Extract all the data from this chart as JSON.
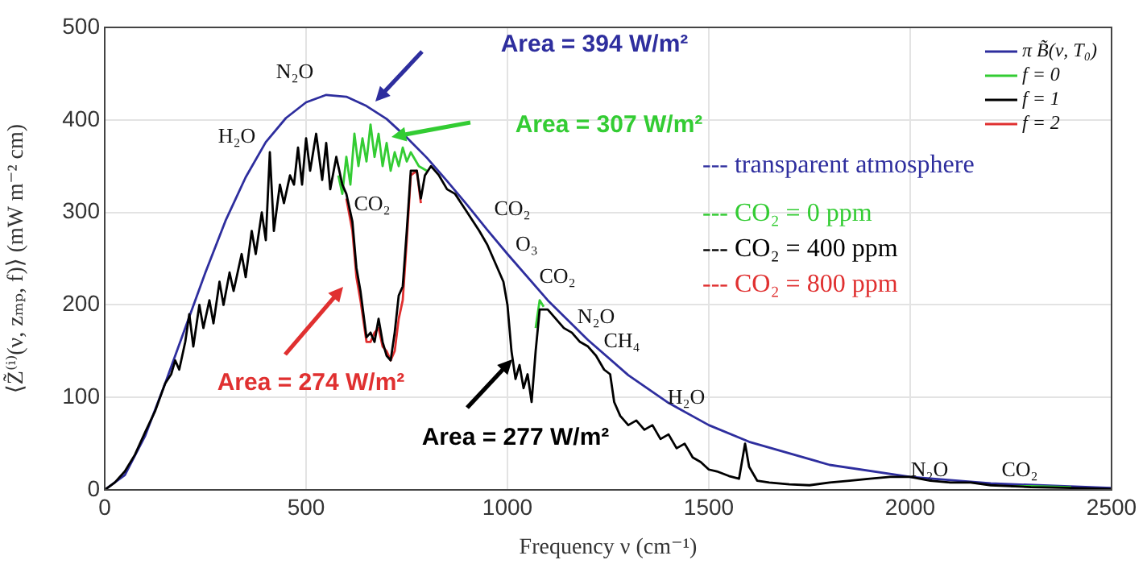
{
  "chart_data": {
    "type": "line",
    "xlabel": "Frequency ν (cm⁻¹)",
    "ylabel": "⟨Z̃⁽ⁱ⁾(ν, zₘₚ, f)⟩ (mW m⁻² cm)",
    "xlim": [
      0,
      2500
    ],
    "xticks": [
      0,
      500,
      1000,
      1500,
      2000,
      2500
    ],
    "ylim": [
      0,
      500
    ],
    "yticks": [
      0,
      100,
      200,
      300,
      400,
      500
    ],
    "grid": true,
    "legend": "top right",
    "marker": "none",
    "line_style": "solid",
    "series": [
      {
        "name": "π B̃(ν, T₀)",
        "color": "#2e2e9e",
        "x": [
          0,
          50,
          100,
          150,
          200,
          250,
          300,
          350,
          400,
          450,
          500,
          550,
          600,
          650,
          700,
          750,
          800,
          850,
          900,
          950,
          1000,
          1100,
          1200,
          1300,
          1400,
          1500,
          1600,
          1800,
          2000,
          2200,
          2500
        ],
        "values": [
          0,
          16,
          58,
          115,
          175,
          235,
          291,
          338,
          376,
          402,
          419,
          427,
          425,
          415,
          401,
          381,
          359,
          334,
          308,
          281,
          255,
          205,
          162,
          124,
          94,
          70,
          52,
          27,
          14,
          7,
          2
        ]
      },
      {
        "name": "f = 0",
        "color": "#33cc33",
        "x": [
          580,
          590,
          600,
          610,
          620,
          630,
          640,
          650,
          660,
          670,
          680,
          690,
          700,
          710,
          720,
          730,
          740,
          750,
          760,
          780,
          800,
          900,
          1070,
          1080,
          1090,
          1200,
          2250,
          2300,
          2400
        ],
        "values": [
          340,
          320,
          360,
          330,
          385,
          350,
          380,
          355,
          395,
          360,
          385,
          350,
          375,
          345,
          365,
          350,
          370,
          355,
          365,
          350,
          345,
          null,
          175,
          205,
          198,
          null,
          4,
          4,
          3
        ]
      },
      {
        "name": "f = 1",
        "color": "#000000",
        "x": [
          0,
          25,
          50,
          75,
          100,
          125,
          150,
          165,
          175,
          185,
          200,
          210,
          220,
          235,
          245,
          260,
          270,
          285,
          295,
          310,
          320,
          340,
          350,
          365,
          375,
          390,
          400,
          410,
          420,
          435,
          445,
          460,
          470,
          480,
          490,
          500,
          510,
          525,
          540,
          550,
          560,
          575,
          590,
          600,
          615,
          625,
          635,
          650,
          660,
          670,
          680,
          690,
          700,
          710,
          720,
          730,
          740,
          750,
          760,
          775,
          785,
          795,
          810,
          830,
          850,
          870,
          900,
          930,
          950,
          975,
          990,
          1000,
          1010,
          1020,
          1030,
          1040,
          1050,
          1060,
          1070,
          1080,
          1100,
          1120,
          1140,
          1160,
          1180,
          1200,
          1220,
          1240,
          1255,
          1265,
          1280,
          1300,
          1320,
          1340,
          1360,
          1380,
          1400,
          1420,
          1440,
          1460,
          1480,
          1500,
          1520,
          1550,
          1575,
          1590,
          1600,
          1620,
          1650,
          1700,
          1750,
          1800,
          1850,
          1900,
          1950,
          2000,
          2050,
          2100,
          2150,
          2200,
          2300,
          2400,
          2500
        ],
        "values": [
          0,
          8,
          20,
          38,
          62,
          85,
          115,
          125,
          140,
          130,
          160,
          190,
          155,
          200,
          175,
          205,
          180,
          225,
          200,
          235,
          215,
          255,
          230,
          280,
          255,
          300,
          270,
          365,
          280,
          330,
          310,
          340,
          330,
          370,
          330,
          380,
          345,
          385,
          335,
          375,
          325,
          360,
          330,
          320,
          290,
          240,
          215,
          165,
          170,
          160,
          185,
          160,
          145,
          140,
          170,
          210,
          220,
          280,
          345,
          345,
          315,
          340,
          350,
          340,
          325,
          320,
          300,
          280,
          265,
          240,
          225,
          200,
          150,
          120,
          135,
          110,
          125,
          95,
          150,
          195,
          195,
          185,
          175,
          170,
          160,
          155,
          145,
          130,
          125,
          95,
          80,
          70,
          75,
          65,
          70,
          55,
          60,
          45,
          50,
          35,
          30,
          22,
          20,
          15,
          12,
          50,
          25,
          10,
          8,
          6,
          5,
          8,
          10,
          12,
          14,
          14,
          10,
          8,
          8,
          5,
          3,
          2,
          1
        ]
      },
      {
        "name": "f = 2",
        "color": "#e03030",
        "x": [
          600,
          615,
          625,
          635,
          650,
          660,
          670,
          680,
          690,
          700,
          710,
          720,
          730,
          740,
          750,
          760,
          775,
          785
        ],
        "values": [
          315,
          280,
          230,
          205,
          160,
          160,
          170,
          175,
          155,
          150,
          140,
          150,
          185,
          205,
          270,
          340,
          345,
          310
        ]
      }
    ],
    "annotations": [
      "Area = 394 W/m²",
      "Area = 307 W/m²",
      "Area = 274 W/m²",
      "Area = 277 W/m²",
      "N₂O",
      "H₂O",
      "CO₂",
      "CO₂",
      "O₃",
      "CO₂",
      "N₂O",
      "CH₄",
      "H₂O",
      "N₂O",
      "CO₂",
      "--- transparent atmosphere",
      "--- CO₂ = 0 ppm",
      "--- CO₂ = 400 ppm",
      "--- CO₂ = 800 ppm"
    ]
  }
}
